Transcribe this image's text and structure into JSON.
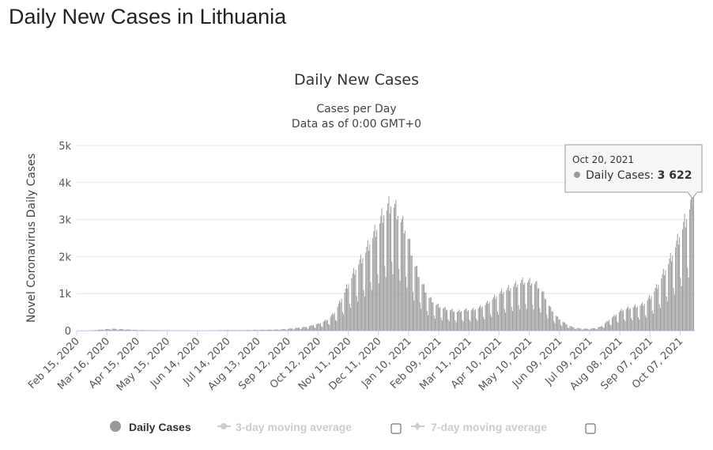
{
  "page_title": "Daily New Cases in Lithuania",
  "chart_data": {
    "type": "bar",
    "title": "Daily New Cases",
    "subtitle": [
      "Cases per Day",
      "Data as of 0:00 GMT+0"
    ],
    "ylabel": "Novel Coronavirus Daily Cases",
    "xlabel": "",
    "ylim": [
      0,
      5000
    ],
    "yticks": [
      "0",
      "1k",
      "2k",
      "3k",
      "4k",
      "5k"
    ],
    "x_start": "Feb 15, 2020",
    "x_end": "Oct 20, 2021",
    "xticks": [
      "Feb 15, 2020",
      "Mar 16, 2020",
      "Apr 15, 2020",
      "May 15, 2020",
      "Jun 14, 2020",
      "Jul 14, 2020",
      "Aug 13, 2020",
      "Sep 12, 2020",
      "Oct 12, 2020",
      "Nov 11, 2020",
      "Dec 11, 2020",
      "Jan 10, 2021",
      "Feb 09, 2021",
      "Mar 11, 2021",
      "Apr 10, 2021",
      "May 10, 2021",
      "Jun 09, 2021",
      "Jul 09, 2021",
      "Aug 08, 2021",
      "Sep 07, 2021",
      "Oct 07, 2021"
    ],
    "grid": true,
    "series": [
      {
        "name": "Daily Cases",
        "color": "#999999",
        "values": [
          0,
          0,
          5,
          20,
          40,
          50,
          40,
          30,
          20,
          15,
          10,
          10,
          8,
          5,
          5,
          5,
          3,
          3,
          3,
          5,
          10,
          15,
          10,
          10,
          15,
          20,
          20,
          25,
          30,
          40,
          60,
          80,
          100,
          150,
          200,
          300,
          500,
          900,
          1300,
          1700,
          2000,
          2400,
          2800,
          3200,
          3400,
          3000,
          2600,
          1800,
          1300,
          900,
          700,
          600,
          550,
          500,
          550,
          550,
          600,
          700,
          850,
          1000,
          1100,
          1200,
          1300,
          1300,
          1250,
          1000,
          600,
          350,
          200,
          100,
          60,
          50,
          60,
          100,
          250,
          400,
          550,
          600,
          650,
          700,
          900,
          1200,
          1600,
          2000,
          2500,
          3000,
          3622
        ]
      }
    ],
    "tooltip": {
      "date": "Oct 20, 2021",
      "label": "Daily Cases: ",
      "value": "3 622"
    },
    "legend": {
      "position": "bottom",
      "items": [
        {
          "label": "Daily Cases",
          "active": true
        },
        {
          "label": "3-day moving average",
          "active": false
        },
        {
          "label": "7-day moving average",
          "active": false
        }
      ]
    }
  }
}
